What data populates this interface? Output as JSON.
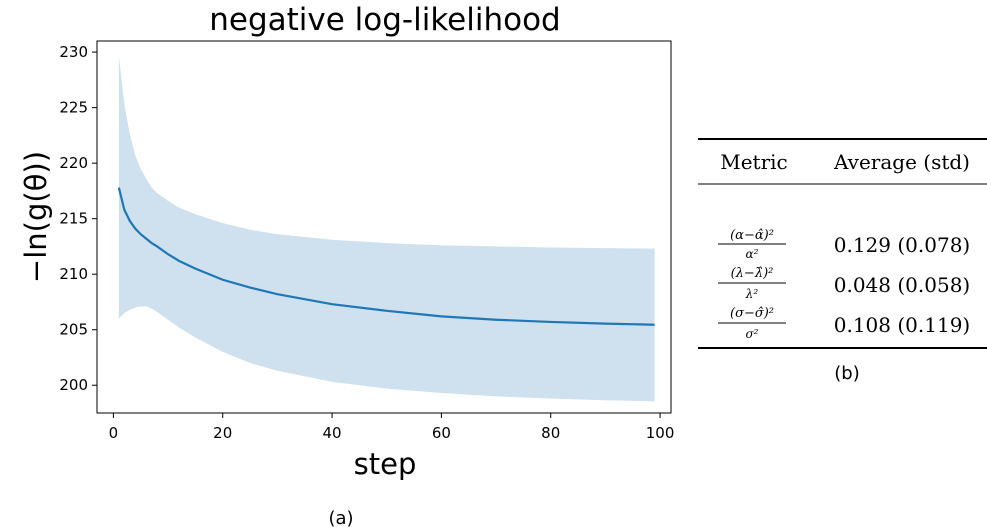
{
  "chart_data": {
    "type": "line",
    "title": "negative log-likelihood",
    "xlabel": "step",
    "ylabel": "−ln(g(θ))",
    "caption": "(a)",
    "xlim": [
      -3,
      102
    ],
    "ylim": [
      197.5,
      231
    ],
    "xticks": [
      0,
      20,
      40,
      60,
      80,
      100
    ],
    "yticks": [
      200,
      205,
      210,
      215,
      220,
      225,
      230
    ],
    "grid": false,
    "series": [
      {
        "x": [
          1,
          2,
          3,
          4,
          5,
          6,
          7,
          8,
          10,
          12,
          15,
          20,
          25,
          30,
          40,
          50,
          60,
          70,
          80,
          90,
          99
        ],
        "values": [
          217.8,
          215.8,
          214.8,
          214.1,
          213.6,
          213.2,
          212.8,
          212.5,
          211.8,
          211.2,
          210.5,
          209.5,
          208.8,
          208.2,
          207.3,
          206.7,
          206.2,
          205.9,
          205.7,
          205.55,
          205.45
        ],
        "upper": [
          229.6,
          225.3,
          222.6,
          220.7,
          219.5,
          218.6,
          217.8,
          217.3,
          216.6,
          216.0,
          215.4,
          214.6,
          214.0,
          213.6,
          213.1,
          212.8,
          212.6,
          212.5,
          212.4,
          212.35,
          212.3
        ],
        "lower": [
          206.0,
          206.5,
          206.8,
          207.0,
          207.1,
          207.1,
          206.9,
          206.6,
          205.9,
          205.2,
          204.3,
          203.0,
          202.0,
          201.3,
          200.3,
          199.7,
          199.3,
          199.0,
          198.8,
          198.65,
          198.55
        ],
        "color": "#1f77b4",
        "band_color": "#cfe0ef"
      }
    ]
  },
  "table": {
    "caption": "(b)",
    "headers": [
      "Metric",
      "Average (std)"
    ],
    "rows": [
      {
        "num": "(α−α̂)²",
        "den": "α²",
        "value": "0.129 (0.078)"
      },
      {
        "num": "(λ−λ̂)²",
        "den": "λ²",
        "value": "0.048 (0.058)"
      },
      {
        "num": "(σ−σ̂)²",
        "den": "σ²",
        "value": "0.108 (0.119)"
      }
    ]
  }
}
